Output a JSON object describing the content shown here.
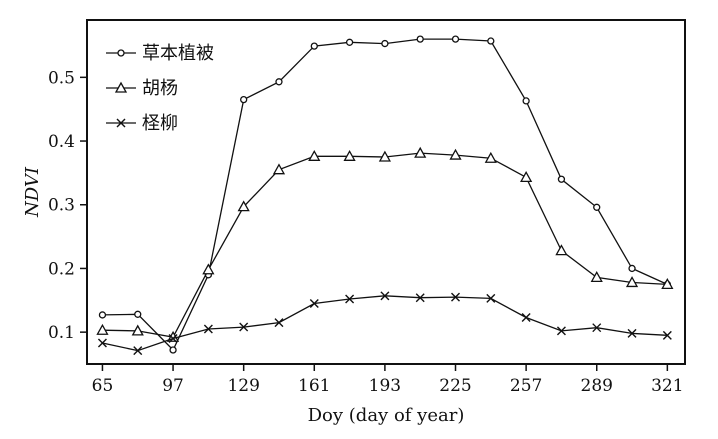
{
  "chart_data": {
    "type": "line",
    "xlabel": "Doy (day of year)",
    "ylabel": "NDVI",
    "xlim": [
      58,
      329
    ],
    "ylim": [
      0.05,
      0.59
    ],
    "x_ticks": [
      65,
      97,
      129,
      161,
      193,
      225,
      257,
      289,
      321
    ],
    "y_ticks": [
      0.1,
      0.2,
      0.3,
      0.4,
      0.5
    ],
    "y_tick_labels": [
      "0.1",
      "0.2",
      "0.3",
      "0.4",
      "0.5"
    ],
    "legend_position": "top-left",
    "x": [
      65,
      81,
      97,
      113,
      129,
      145,
      161,
      177,
      193,
      209,
      225,
      241,
      257,
      273,
      289,
      305,
      321
    ],
    "series": [
      {
        "name": "草本植被",
        "marker": "circle",
        "values": [
          0.127,
          0.128,
          0.072,
          0.19,
          0.465,
          0.493,
          0.549,
          0.555,
          0.553,
          0.56,
          0.56,
          0.557,
          0.463,
          0.34,
          0.296,
          0.2,
          0.175
        ]
      },
      {
        "name": "胡杨",
        "marker": "triangle",
        "values": [
          0.103,
          0.102,
          0.092,
          0.198,
          0.297,
          0.355,
          0.376,
          0.376,
          0.375,
          0.381,
          0.378,
          0.373,
          0.343,
          0.228,
          0.186,
          0.178,
          0.175
        ]
      },
      {
        "name": "柽柳",
        "marker": "x",
        "values": [
          0.083,
          0.071,
          0.09,
          0.105,
          0.108,
          0.115,
          0.145,
          0.152,
          0.157,
          0.154,
          0.155,
          0.153,
          0.123,
          0.102,
          0.107,
          0.098,
          0.095
        ]
      }
    ]
  }
}
